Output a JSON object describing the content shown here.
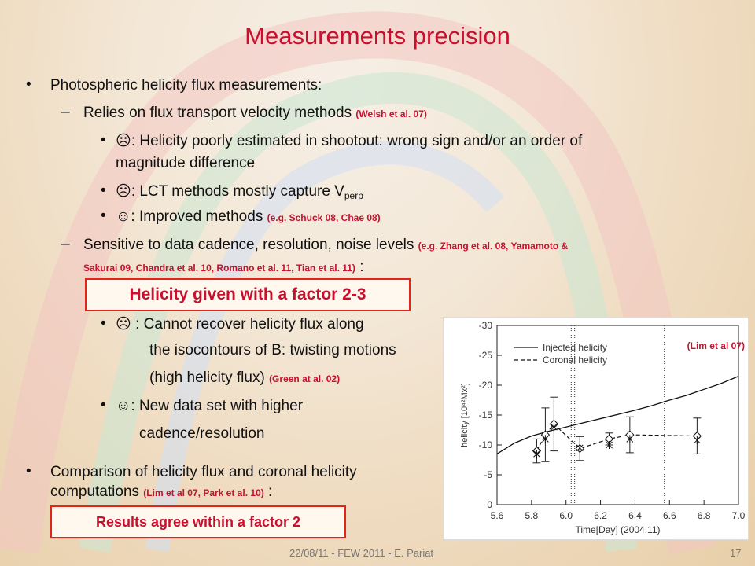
{
  "slide": {
    "title": "Measurements precision",
    "bullet1": "Photospheric helicity flux measurements:",
    "sub1": "Relies on flux transport velocity methods",
    "sub1_ref": "(Welsh et al. 07)",
    "frown": "☹",
    "smile": "☺",
    "item1_a": ": Helicity poorly estimated in shootout: wrong sign and/or an order of",
    "item1_b": "magnitude difference",
    "item2": ": LCT methods mostly capture V",
    "item2_sub": "perp",
    "item3": ": Improved methods",
    "item3_ref": "(e.g. Schuck 08, Chae 08)",
    "sub2": "Sensitive to data cadence, resolution, noise levels",
    "sub2_ref_a": "(e.g. Zhang et al. 08, Yamamoto &",
    "sub2_ref_b": "Sakurai 09, Chandra et al. 10, Romano et al. 11, Tian et al. 11)",
    "colon": ":",
    "box1": "Helicity given with a factor 2-3",
    "item4_a": " : Cannot recover helicity flux along",
    "item4_b": "the isocontours of B: twisting motions",
    "item4_c": "(high helicity flux)",
    "item4_ref": "(Green at al. 02)",
    "item5_a": ": New data set with higher",
    "item5_b": "cadence/resolution",
    "bullet2_a": "Comparison of helicity flux and coronal helicity",
    "bullet2_b": "computations",
    "bullet2_ref": "(Lim et al 07, Park et al. 10)",
    "box2": "Results agree within a factor 2",
    "footer": "22/08/11 -  FEW 2011 - E. Pariat",
    "page": "17"
  },
  "chart_data": {
    "type": "line",
    "citation": "(Lim et al 07)",
    "xlabel": "Time[Day]  (2004.11)",
    "ylabel": "helicity  [10⁴²Mx²]",
    "xlim": [
      5.6,
      7.0
    ],
    "ylim": [
      0,
      -30
    ],
    "x_ticks": [
      "5.6",
      "5.8",
      "6.0",
      "6.2",
      "6.4",
      "6.6",
      "6.8",
      "7.0"
    ],
    "y_ticks": [
      "-30",
      "-25",
      "-20",
      "-15",
      "-10",
      "-5",
      "0"
    ],
    "legend": [
      "Injected helicity",
      "Coronal helicity"
    ],
    "vlines": [
      6.03,
      6.05,
      6.57
    ],
    "series": [
      {
        "name": "Injected helicity",
        "style": "solid",
        "x": [
          5.6,
          5.7,
          5.8,
          5.9,
          6.0,
          6.1,
          6.2,
          6.3,
          6.4,
          6.5,
          6.6,
          6.7,
          6.8,
          6.9,
          7.0
        ],
        "y": [
          -8.5,
          -10.3,
          -11.5,
          -12.3,
          -13.0,
          -13.7,
          -14.4,
          -15.1,
          -15.8,
          -16.6,
          -17.5,
          -18.3,
          -19.3,
          -20.3,
          -21.5
        ]
      },
      {
        "name": "Coronal helicity",
        "style": "dashed",
        "x": [
          5.83,
          5.88,
          5.93,
          6.08,
          6.25,
          6.37,
          6.76
        ],
        "y": [
          -9.0,
          -11.7,
          -13.5,
          -9.4,
          -11.0,
          -11.7,
          -11.5
        ],
        "err": [
          2.0,
          4.5,
          4.5,
          2.0,
          1.0,
          3.0,
          3.0
        ]
      }
    ],
    "star_points": {
      "x": [
        5.83,
        5.88,
        5.93,
        6.08,
        6.25,
        6.37,
        6.76
      ],
      "y": [
        -8.5,
        -11.0,
        -13.0,
        -9.5,
        -10.0,
        -11.0,
        -10.8
      ]
    }
  }
}
